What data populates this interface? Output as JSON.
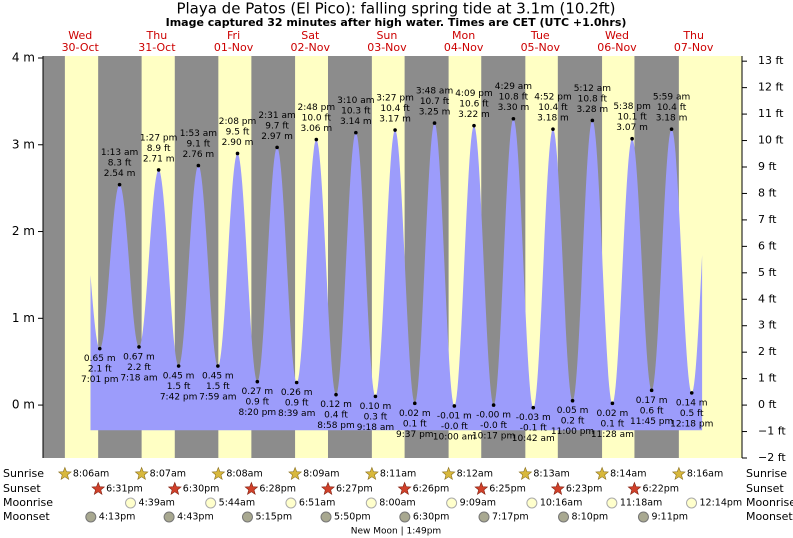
{
  "header": {
    "title": "Playa de Patos (El Pico): falling  spring tide at 3.1m (10.2ft)",
    "subtitle": "Image captured 32 minutes after high water. Times are CET (UTC +1.0hrs)"
  },
  "chart_data": {
    "type": "tide",
    "ylim": [
      -0.61,
      4
    ],
    "yticks": [
      {
        "value": 0,
        "label": "0 m"
      },
      {
        "value": 1,
        "label": "1 m"
      },
      {
        "value": 2,
        "label": "2 m"
      },
      {
        "value": 3,
        "label": "3 m"
      },
      {
        "value": 4,
        "label": "4 m"
      }
    ],
    "y2lim": [
      -2,
      13.12
    ],
    "y2ticks": [
      {
        "value": -2,
        "label": "−2 ft"
      },
      {
        "value": -1,
        "label": "−1 ft"
      },
      {
        "value": 0,
        "label": "0 ft"
      },
      {
        "value": 1,
        "label": "1 ft"
      },
      {
        "value": 2,
        "label": "2 ft"
      },
      {
        "value": 3,
        "label": "3 ft"
      },
      {
        "value": 4,
        "label": "4 ft"
      },
      {
        "value": 5,
        "label": "5 ft"
      },
      {
        "value": 6,
        "label": "6 ft"
      },
      {
        "value": 7,
        "label": "7 ft"
      },
      {
        "value": 8,
        "label": "8 ft"
      },
      {
        "value": 9,
        "label": "9 ft"
      },
      {
        "value": 10,
        "label": "10 ft"
      },
      {
        "value": 11,
        "label": "11 ft"
      },
      {
        "value": 12,
        "label": "12 ft"
      },
      {
        "value": 13,
        "label": "13 ft"
      }
    ],
    "fill_color": "#9c9cfb",
    "day_color": "#ffffc4",
    "night_color": "#8c8c8c",
    "row_labels": {
      "sunrise": "Sunrise",
      "sunset": "Sunset",
      "moonrise": "Moonrise",
      "moonset": "Moonset"
    },
    "days": [
      {
        "day": "Wed",
        "date": "30-Oct",
        "sunrise": "8:06am",
        "sunset": "6:31pm",
        "moonrise": null,
        "moonset": "4:13pm",
        "tides": [
          {
            "time": "7:01 pm",
            "m": 0.65,
            "m_label": "0.65 m",
            "ft": "2.1 ft"
          }
        ]
      },
      {
        "day": "Thu",
        "date": "31-Oct",
        "sunrise": "8:07am",
        "sunset": "6:30pm",
        "moonrise": "4:39am",
        "moonset": "4:43pm",
        "tides": [
          {
            "time": "1:13 am",
            "m": 2.54,
            "m_label": "2.54 m",
            "ft": "8.3 ft"
          },
          {
            "time": "7:18 am",
            "m": 0.67,
            "m_label": "0.67 m",
            "ft": "2.2 ft"
          },
          {
            "time": "1:27 pm",
            "m": 2.71,
            "m_label": "2.71 m",
            "ft": "8.9 ft"
          },
          {
            "time": "7:42 pm",
            "m": 0.45,
            "m_label": "0.45 m",
            "ft": "1.5 ft"
          }
        ]
      },
      {
        "day": "Fri",
        "date": "01-Nov",
        "sunrise": "8:08am",
        "sunset": "6:28pm",
        "moonrise": "5:44am",
        "moonset": "5:15pm",
        "tides": [
          {
            "time": "1:53 am",
            "m": 2.76,
            "m_label": "2.76 m",
            "ft": "9.1 ft"
          },
          {
            "time": "7:59 am",
            "m": 0.45,
            "m_label": "0.45 m",
            "ft": "1.5 ft"
          },
          {
            "time": "2:08 pm",
            "m": 2.9,
            "m_label": "2.90 m",
            "ft": "9.5 ft"
          },
          {
            "time": "8:20 pm",
            "m": 0.27,
            "m_label": "0.27 m",
            "ft": "0.9 ft"
          }
        ]
      },
      {
        "day": "Sat",
        "date": "02-Nov",
        "sunrise": "8:09am",
        "sunset": "6:27pm",
        "moonrise": "6:51am",
        "moonset": "5:50pm",
        "tides": [
          {
            "time": "2:31 am",
            "m": 2.97,
            "m_label": "2.97 m",
            "ft": "9.7 ft"
          },
          {
            "time": "8:39 am",
            "m": 0.26,
            "m_label": "0.26 m",
            "ft": "0.9 ft"
          },
          {
            "time": "2:48 pm",
            "m": 3.06,
            "m_label": "3.06 m",
            "ft": "10.0 ft"
          },
          {
            "time": "8:58 pm",
            "m": 0.12,
            "m_label": "0.12 m",
            "ft": "0.4 ft"
          }
        ]
      },
      {
        "day": "Sun",
        "date": "03-Nov",
        "sunrise": "8:11am",
        "sunset": "6:26pm",
        "moonrise": "8:00am",
        "moonset": "6:30pm",
        "tides": [
          {
            "time": "3:10 am",
            "m": 3.14,
            "m_label": "3.14 m",
            "ft": "10.3 ft"
          },
          {
            "time": "9:18 am",
            "m": 0.1,
            "m_label": "0.10 m",
            "ft": "0.3 ft"
          },
          {
            "time": "3:27 pm",
            "m": 3.17,
            "m_label": "3.17 m",
            "ft": "10.4 ft"
          },
          {
            "time": "9:37 pm",
            "m": 0.02,
            "m_label": "0.02 m",
            "ft": "0.1 ft"
          }
        ]
      },
      {
        "day": "Mon",
        "date": "04-Nov",
        "sunrise": "8:12am",
        "sunset": "6:25pm",
        "moonrise": "9:09am",
        "moonset": "7:17pm",
        "tides": [
          {
            "time": "3:48 am",
            "m": 3.25,
            "m_label": "3.25 m",
            "ft": "10.7 ft"
          },
          {
            "time": "10:00 am",
            "m": -0.01,
            "m_label": "-0.01 m",
            "ft": "-0.0 ft"
          },
          {
            "time": "4:09 pm",
            "m": 3.22,
            "m_label": "3.22 m",
            "ft": "10.6 ft"
          },
          {
            "time": "10:17 pm",
            "m": 0,
            "m_label": "-0.00 m",
            "ft": "-0.0 ft"
          }
        ]
      },
      {
        "day": "Tue",
        "date": "05-Nov",
        "sunrise": "8:13am",
        "sunset": "6:23pm",
        "moonrise": "10:16am",
        "moonset": "8:10pm",
        "tides": [
          {
            "time": "4:29 am",
            "m": 3.3,
            "m_label": "3.30 m",
            "ft": "10.8 ft"
          },
          {
            "time": "10:42 am",
            "m": -0.03,
            "m_label": "-0.03 m",
            "ft": "-0.1 ft"
          },
          {
            "time": "4:52 pm",
            "m": 3.18,
            "m_label": "3.18 m",
            "ft": "10.4 ft"
          },
          {
            "time": "11:00 pm",
            "m": 0.05,
            "m_label": "0.05 m",
            "ft": "0.2 ft"
          }
        ]
      },
      {
        "day": "Wed",
        "date": "06-Nov",
        "sunrise": "8:14am",
        "sunset": "6:22pm",
        "moonrise": "11:18am",
        "moonset": "9:11pm",
        "tides": [
          {
            "time": "5:12 am",
            "m": 3.28,
            "m_label": "3.28 m",
            "ft": "10.8 ft"
          },
          {
            "time": "11:28 am",
            "m": 0.02,
            "m_label": "0.02 m",
            "ft": "0.1 ft"
          },
          {
            "time": "5:38 pm",
            "m": 3.07,
            "m_label": "3.07 m",
            "ft": "10.1 ft"
          },
          {
            "time": "11:45 pm",
            "m": 0.17,
            "m_label": "0.17 m",
            "ft": "0.6 ft"
          }
        ]
      },
      {
        "day": "Thu",
        "date": "07-Nov",
        "sunrise": "8:16am",
        "sunset": null,
        "moonrise": "12:14pm",
        "moonset": null,
        "tides": [
          {
            "time": "5:59 am",
            "m": 3.18,
            "m_label": "3.18 m",
            "ft": "10.4 ft"
          },
          {
            "time": "12:18 pm",
            "m": 0.14,
            "m_label": "0.14 m",
            "ft": "0.5 ft"
          }
        ]
      }
    ],
    "moon_phase": "New Moon | 1:49pm"
  }
}
